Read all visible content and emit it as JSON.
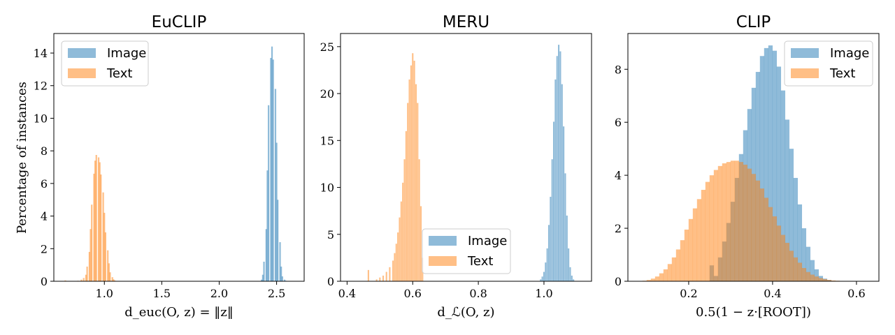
{
  "colors": {
    "image": "#1f77b4",
    "text": "#ff7f0e"
  },
  "ylabel": "Percentage of instances",
  "chart_data": [
    {
      "type": "histogram",
      "title": "EuCLIP",
      "xlabel": "d_euc(O, z) = ‖z‖",
      "ylabel": "Percentage of instances",
      "xlim": [
        0.56,
        2.74
      ],
      "ylim": [
        0,
        15.2
      ],
      "xticks": [
        1.0,
        1.5,
        2.0,
        2.5
      ],
      "xtick_labels": [
        "1.0",
        "1.5",
        "2.0",
        "2.5"
      ],
      "yticks": [
        0,
        2,
        4,
        6,
        8,
        10,
        12,
        14
      ],
      "ytick_labels": [
        "0",
        "2",
        "4",
        "6",
        "8",
        "10",
        "12",
        "14"
      ],
      "legend_position": "upper-left",
      "legend": [
        "Image",
        "Text"
      ],
      "series": [
        {
          "name": "Text",
          "color_key": "text",
          "bin_width": 0.0135,
          "centers": [
            0.66,
            0.77,
            0.8,
            0.82,
            0.84,
            0.85,
            0.87,
            0.88,
            0.89,
            0.91,
            0.92,
            0.93,
            0.95,
            0.96,
            0.97,
            0.99,
            1.0,
            1.01,
            1.03,
            1.04,
            1.05,
            1.07,
            1.08,
            1.09,
            1.11
          ],
          "values": [
            0.05,
            0.03,
            0.1,
            0.2,
            0.4,
            0.9,
            1.8,
            3.2,
            4.7,
            6.6,
            7.4,
            7.75,
            7.6,
            7.3,
            6.55,
            5.45,
            4.2,
            3.0,
            1.9,
            1.1,
            0.55,
            0.25,
            0.12,
            0.05,
            0.02
          ]
        },
        {
          "name": "Image",
          "color_key": "image",
          "bin_width": 0.0135,
          "centers": [
            2.37,
            2.38,
            2.39,
            2.41,
            2.42,
            2.43,
            2.45,
            2.46,
            2.47,
            2.49,
            2.5,
            2.51,
            2.53,
            2.54,
            2.55,
            2.57,
            2.58
          ],
          "values": [
            0.1,
            0.4,
            1.2,
            3.2,
            6.8,
            10.8,
            13.7,
            14.4,
            13.6,
            11.8,
            8.5,
            5.0,
            2.4,
            0.9,
            0.3,
            0.1,
            0.03
          ]
        }
      ]
    },
    {
      "type": "histogram",
      "title": "MERU",
      "xlabel": "d_ℒ(O, z)",
      "ylabel": "",
      "xlim": [
        0.38,
        1.145
      ],
      "ylim": [
        0,
        26.4
      ],
      "xticks": [
        0.4,
        0.6,
        0.8,
        1.0
      ],
      "xtick_labels": [
        "0.4",
        "0.6",
        "0.8",
        "1.0"
      ],
      "yticks": [
        0,
        5,
        10,
        15,
        20,
        25
      ],
      "ytick_labels": [
        "0",
        "5",
        "10",
        "15",
        "20",
        "25"
      ],
      "legend_position": "lower-center",
      "legend": [
        "Image",
        "Text"
      ],
      "series": [
        {
          "name": "Text",
          "color_key": "text",
          "bin_width": 0.0045,
          "centers": [
            0.465,
            0.49,
            0.5,
            0.51,
            0.52,
            0.53,
            0.54,
            0.545,
            0.55,
            0.555,
            0.56,
            0.565,
            0.57,
            0.575,
            0.58,
            0.585,
            0.59,
            0.595,
            0.6,
            0.605,
            0.61,
            0.615,
            0.62,
            0.625,
            0.63
          ],
          "values": [
            1.2,
            0.2,
            0.4,
            0.6,
            1.0,
            1.5,
            2.2,
            3.0,
            4.0,
            5.2,
            6.8,
            8.5,
            10.5,
            13.0,
            16.0,
            19.0,
            21.5,
            23.0,
            24.3,
            23.5,
            21.0,
            19.0,
            13.0,
            8.0,
            2.5
          ]
        },
        {
          "name": "Image",
          "color_key": "image",
          "bin_width": 0.0045,
          "centers": [
            0.99,
            0.995,
            1.0,
            1.005,
            1.01,
            1.015,
            1.02,
            1.025,
            1.03,
            1.035,
            1.04,
            1.045,
            1.05,
            1.055,
            1.06,
            1.065,
            1.07,
            1.075,
            1.08,
            1.085,
            1.09
          ],
          "values": [
            0.2,
            0.5,
            1.0,
            2.0,
            3.5,
            6.0,
            9.0,
            13.0,
            17.0,
            21.5,
            24.0,
            25.2,
            24.5,
            21.0,
            16.5,
            11.5,
            7.0,
            3.5,
            1.5,
            0.6,
            0.2
          ]
        }
      ]
    },
    {
      "type": "histogram",
      "title": "CLIP",
      "xlabel": "0.5(1 − z·[ROOT])",
      "ylabel": "",
      "xlim": [
        0.0551,
        0.6535
      ],
      "ylim": [
        0,
        9.35
      ],
      "xticks": [
        0.2,
        0.4,
        0.6
      ],
      "xtick_labels": [
        "0.2",
        "0.4",
        "0.6"
      ],
      "yticks": [
        0,
        2,
        4,
        6,
        8
      ],
      "ytick_labels": [
        "0",
        "2",
        "4",
        "6",
        "8"
      ],
      "legend_position": "upper-right",
      "legend": [
        "Image",
        "Text"
      ],
      "series": [
        {
          "name": "Image",
          "color_key": "image",
          "bin_width": 0.0104,
          "centers": [
            0.255,
            0.265,
            0.275,
            0.285,
            0.295,
            0.305,
            0.315,
            0.325,
            0.335,
            0.345,
            0.355,
            0.365,
            0.375,
            0.385,
            0.395,
            0.405,
            0.415,
            0.425,
            0.435,
            0.445,
            0.455,
            0.465,
            0.475,
            0.485,
            0.495,
            0.505,
            0.515,
            0.525,
            0.535
          ],
          "values": [
            0.6,
            0.2,
            0.9,
            1.5,
            2.2,
            3.0,
            3.9,
            4.8,
            5.7,
            6.5,
            7.3,
            7.9,
            8.5,
            8.8,
            8.9,
            8.7,
            8.1,
            7.2,
            6.1,
            5.0,
            3.9,
            2.9,
            2.0,
            1.3,
            0.8,
            0.45,
            0.2,
            0.1,
            0.05
          ]
        },
        {
          "name": "Text",
          "color_key": "text",
          "bin_width": 0.0104,
          "centers": [
            0.095,
            0.105,
            0.115,
            0.125,
            0.135,
            0.145,
            0.155,
            0.165,
            0.175,
            0.185,
            0.195,
            0.205,
            0.215,
            0.225,
            0.235,
            0.245,
            0.255,
            0.265,
            0.275,
            0.285,
            0.295,
            0.305,
            0.315,
            0.325,
            0.335,
            0.345,
            0.355,
            0.365,
            0.375,
            0.385,
            0.395,
            0.405,
            0.415,
            0.425,
            0.435,
            0.445,
            0.455,
            0.465,
            0.475,
            0.485,
            0.495,
            0.505,
            0.515,
            0.525,
            0.535,
            0.545,
            0.555,
            0.565,
            0.575,
            0.585,
            0.595
          ],
          "values": [
            0.02,
            0.05,
            0.1,
            0.18,
            0.3,
            0.45,
            0.65,
            0.9,
            1.2,
            1.55,
            1.95,
            2.35,
            2.75,
            3.1,
            3.45,
            3.75,
            4.0,
            4.2,
            4.35,
            4.45,
            4.5,
            4.55,
            4.55,
            4.5,
            4.4,
            4.25,
            4.05,
            3.8,
            3.5,
            3.15,
            2.8,
            2.45,
            2.1,
            1.75,
            1.45,
            1.15,
            0.9,
            0.7,
            0.5,
            0.35,
            0.25,
            0.18,
            0.12,
            0.08,
            0.05,
            0.03,
            0.02,
            0.01,
            0.01,
            0.005,
            0.005
          ]
        }
      ]
    }
  ]
}
